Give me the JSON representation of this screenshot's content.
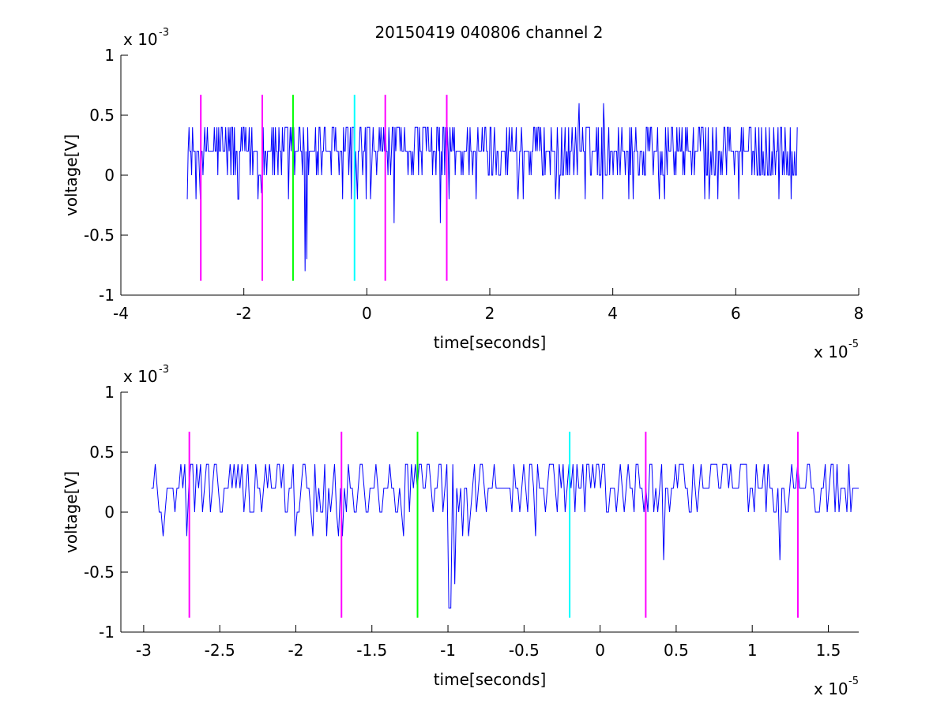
{
  "figure": {
    "title": "20150419 040806 channel 2"
  },
  "chart_data": [
    {
      "type": "line",
      "title": "20150419 040806 channel 2",
      "xlabel": "time[seconds]",
      "ylabel": "voltage[V]",
      "x_multiplier": "x 10",
      "x_exponent": "-5",
      "y_multiplier": "x 10",
      "y_exponent": "-3",
      "xlim": [
        -4,
        8
      ],
      "ylim": [
        -1,
        1
      ],
      "xticks": [
        -4,
        -2,
        0,
        2,
        4,
        6,
        8
      ],
      "xtick_labels": [
        "-4",
        "-2",
        "0",
        "2",
        "4",
        "6",
        "8"
      ],
      "yticks": [
        -1,
        -0.5,
        0,
        0.5,
        1
      ],
      "ytick_labels": [
        "-1",
        "-0.5",
        "0",
        "0.5",
        "1"
      ],
      "grid": false,
      "line_color": "#0000ff",
      "signal": {
        "name": "",
        "x_start": -2.92,
        "x_end": 7.0,
        "baseline": 0.2,
        "levels": [
          0,
          0.2,
          0.4
        ],
        "dips": [
          [
            -2.78,
            -0.2
          ],
          [
            -1.72,
            -0.15
          ],
          [
            -1.0,
            -0.8
          ],
          [
            -0.97,
            -0.7
          ],
          [
            0.45,
            -0.4
          ],
          [
            1.2,
            -0.4
          ],
          [
            -0.2,
            -0.2
          ]
        ],
        "peaks": [
          [
            3.45,
            0.6
          ],
          [
            3.85,
            0.6
          ]
        ]
      },
      "markers": [
        {
          "x": -2.7,
          "color": "#ff00ff"
        },
        {
          "x": -1.7,
          "color": "#ff00ff"
        },
        {
          "x": -1.2,
          "color": "#00ff00"
        },
        {
          "x": -0.2,
          "color": "#00ffff"
        },
        {
          "x": 0.3,
          "color": "#ff00ff"
        },
        {
          "x": 1.3,
          "color": "#ff00ff"
        }
      ],
      "marker_range": [
        -0.88,
        0.67
      ]
    },
    {
      "type": "line",
      "title": "",
      "xlabel": "time[seconds]",
      "ylabel": "voltage[V]",
      "x_multiplier": "x 10",
      "x_exponent": "-5",
      "y_multiplier": "x 10",
      "y_exponent": "-3",
      "xlim": [
        -3.15,
        1.7
      ],
      "ylim": [
        -1,
        1
      ],
      "xticks": [
        -3,
        -2.5,
        -2,
        -1.5,
        -1,
        -0.5,
        0,
        0.5,
        1,
        1.5
      ],
      "xtick_labels": [
        "-3",
        "-2.5",
        "-2",
        "-1.5",
        "-1",
        "-0.5",
        "0",
        "0.5",
        "1",
        "1.5"
      ],
      "yticks": [
        -1,
        -0.5,
        0,
        0.5,
        1
      ],
      "ytick_labels": [
        "-1",
        "-0.5",
        "0",
        "0.5",
        "1"
      ],
      "grid": false,
      "line_color": "#0000ff",
      "signal": {
        "name": "",
        "x_start": -2.95,
        "x_end": 1.7,
        "baseline": 0.2,
        "levels": [
          0,
          0.2,
          0.4
        ],
        "dips": [
          [
            -2.87,
            -0.2
          ],
          [
            -2.72,
            -0.2
          ],
          [
            -1.8,
            -0.2
          ],
          [
            -1.0,
            -0.8
          ],
          [
            -0.98,
            -0.8
          ],
          [
            -0.96,
            -0.6
          ],
          [
            0.42,
            -0.4
          ],
          [
            1.18,
            -0.4
          ]
        ],
        "peaks": []
      },
      "markers": [
        {
          "x": -2.7,
          "color": "#ff00ff"
        },
        {
          "x": -1.7,
          "color": "#ff00ff"
        },
        {
          "x": -1.2,
          "color": "#00ff00"
        },
        {
          "x": -0.2,
          "color": "#00ffff"
        },
        {
          "x": 0.3,
          "color": "#ff00ff"
        },
        {
          "x": 1.3,
          "color": "#ff00ff"
        }
      ],
      "marker_range": [
        -0.88,
        0.67
      ]
    }
  ]
}
